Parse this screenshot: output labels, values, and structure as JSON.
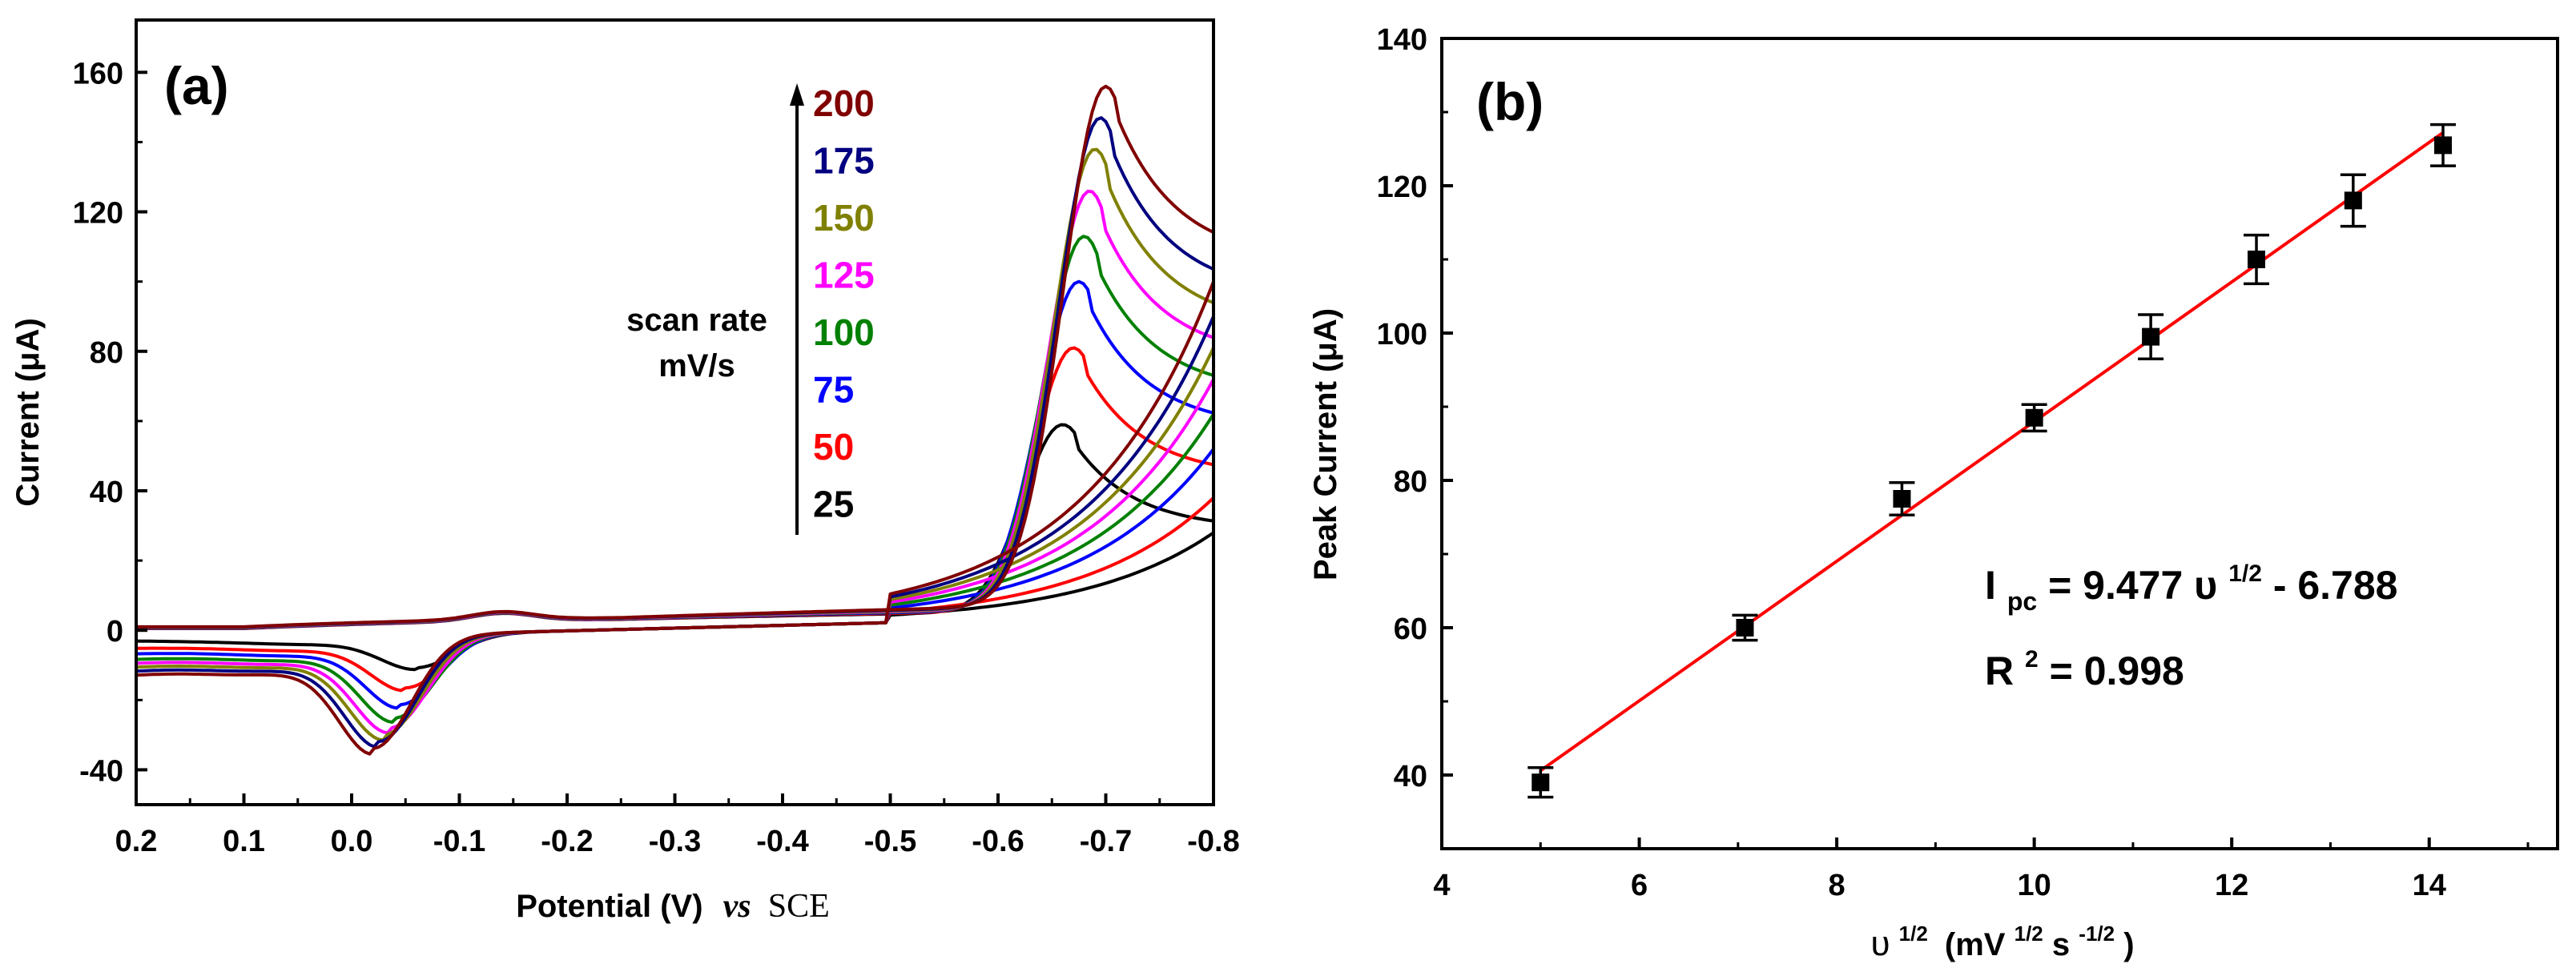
{
  "chart_data": [
    {
      "type": "line",
      "panel_label": "(a)",
      "xlabel": "Potential (V)",
      "xlabel_vs": "vs",
      "xlabel_ref": "SCE",
      "ylabel": "Current (μA)",
      "xlim": [
        0.2,
        -0.8
      ],
      "ylim": [
        -50,
        175
      ],
      "x_ticks": [
        0.2,
        0.1,
        0.0,
        -0.1,
        -0.2,
        -0.3,
        -0.4,
        -0.5,
        -0.6,
        -0.7,
        -0.8
      ],
      "x_tick_labels": [
        "0.2",
        "0.1",
        "0.0",
        "-0.1",
        "-0.2",
        "-0.3",
        "-0.4",
        "-0.5",
        "-0.6",
        "-0.7",
        "-0.8"
      ],
      "y_ticks": [
        -40,
        0,
        40,
        80,
        120,
        160
      ],
      "y_tick_labels": [
        "-40",
        "0",
        "40",
        "80",
        "120",
        "160"
      ],
      "legend_title_line1": "scan rate",
      "legend_title_line2": "mV/s",
      "series": [
        {
          "name": "25",
          "scan_rate": 25,
          "color": "#000000",
          "cathodic_peak": {
            "x": -0.66,
            "y": 59
          },
          "anodic_peak": {
            "x": -0.06,
            "y": -12
          },
          "end_high": 29,
          "end_low": 28,
          "start_low": -3
        },
        {
          "name": "50",
          "scan_rate": 50,
          "color": "#ff0000",
          "cathodic_peak": {
            "x": -0.67,
            "y": 81
          },
          "anodic_peak": {
            "x": -0.05,
            "y": -18
          },
          "end_high": 44,
          "end_low": 38,
          "start_low": -5
        },
        {
          "name": "75",
          "scan_rate": 75,
          "color": "#0000ff",
          "cathodic_peak": {
            "x": -0.675,
            "y": 100
          },
          "anodic_peak": {
            "x": -0.045,
            "y": -23
          },
          "end_high": 58,
          "end_low": 52,
          "start_low": -6.5
        },
        {
          "name": "100",
          "scan_rate": 100,
          "color": "#008000",
          "cathodic_peak": {
            "x": -0.68,
            "y": 113
          },
          "anodic_peak": {
            "x": -0.04,
            "y": -27
          },
          "end_high": 68,
          "end_low": 62,
          "start_low": -8
        },
        {
          "name": "125",
          "scan_rate": 125,
          "color": "#ff00ff",
          "cathodic_peak": {
            "x": -0.685,
            "y": 126
          },
          "anodic_peak": {
            "x": -0.035,
            "y": -30
          },
          "end_high": 78,
          "end_low": 72,
          "start_low": -9
        },
        {
          "name": "150",
          "scan_rate": 150,
          "color": "#808000",
          "cathodic_peak": {
            "x": -0.69,
            "y": 138
          },
          "anodic_peak": {
            "x": -0.03,
            "y": -32
          },
          "end_high": 87,
          "end_low": 81,
          "start_low": -10
        },
        {
          "name": "175",
          "scan_rate": 175,
          "color": "#000080",
          "cathodic_peak": {
            "x": -0.695,
            "y": 147
          },
          "anodic_peak": {
            "x": -0.025,
            "y": -34
          },
          "end_high": 96,
          "end_low": 90,
          "start_low": -11
        },
        {
          "name": "200",
          "scan_rate": 200,
          "color": "#800000",
          "cathodic_peak": {
            "x": -0.7,
            "y": 156
          },
          "anodic_peak": {
            "x": -0.02,
            "y": -36
          },
          "end_high": 106,
          "end_low": 100,
          "start_low": -12
        }
      ]
    },
    {
      "type": "scatter",
      "panel_label": "(b)",
      "xlabel": "υ",
      "xlabel_sup": "1/2",
      "xlabel_units": "(mV",
      "xlabel_units_sup": "1/2",
      "xlabel_units_s": "s",
      "xlabel_units_s_sup": "-1/2",
      "xlabel_units_close": ")",
      "ylabel": "Peak Current (μA)",
      "xlim": [
        4,
        15.3
      ],
      "ylim": [
        30,
        140
      ],
      "x_ticks": [
        4,
        6,
        8,
        10,
        12,
        14
      ],
      "x_tick_labels": [
        "4",
        "6",
        "8",
        "10",
        "12",
        "14"
      ],
      "y_ticks": [
        40,
        60,
        80,
        100,
        120,
        140
      ],
      "y_tick_labels": [
        "40",
        "60",
        "80",
        "100",
        "120",
        "140"
      ],
      "points": [
        {
          "x": 5.0,
          "y": 39.0,
          "err": 2.0
        },
        {
          "x": 7.07,
          "y": 60.0,
          "err": 1.7
        },
        {
          "x": 8.66,
          "y": 77.5,
          "err": 2.2
        },
        {
          "x": 10.0,
          "y": 88.5,
          "err": 1.8
        },
        {
          "x": 11.18,
          "y": 99.5,
          "err": 3.0
        },
        {
          "x": 12.25,
          "y": 110.0,
          "err": 3.3
        },
        {
          "x": 13.23,
          "y": 118.0,
          "err": 3.5
        },
        {
          "x": 14.14,
          "y": 125.5,
          "err": 2.8
        }
      ],
      "fit": {
        "slope": 9.477,
        "intercept": -6.788,
        "x_range": [
          5.0,
          14.14
        ],
        "color": "#ff0000"
      },
      "equation_I": "I",
      "equation_sub": "pc",
      "equation_mid": " = 9.477 υ",
      "equation_sup": "1/2",
      "equation_end": " - 6.788",
      "r2_R": "R",
      "r2_sup": "2",
      "r2_value": " = 0.998"
    }
  ]
}
